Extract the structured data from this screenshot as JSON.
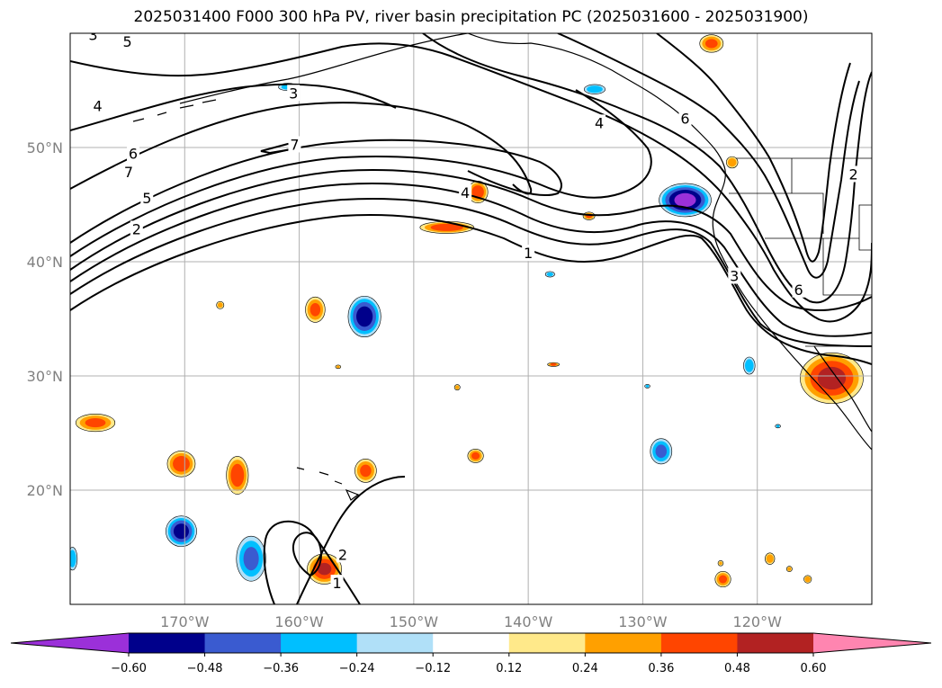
{
  "title": "2025031400 F000 300 hPa PV, river basin precipitation PC (2025031600 - 2025031900)",
  "map": {
    "lon_range": [
      -180,
      -110
    ],
    "lat_range": [
      10,
      60
    ],
    "gridlines": true,
    "lon_ticks": [
      {
        "lon": -170,
        "label": "170°W"
      },
      {
        "lon": -160,
        "label": "160°W"
      },
      {
        "lon": -150,
        "label": "150°W"
      },
      {
        "lon": -140,
        "label": "140°W"
      },
      {
        "lon": -130,
        "label": "130°W"
      },
      {
        "lon": -120,
        "label": "120°W"
      }
    ],
    "lat_ticks": [
      {
        "lat": 50,
        "label": "50°N"
      },
      {
        "lat": 40,
        "label": "40°N"
      },
      {
        "lat": 30,
        "label": "30°N"
      },
      {
        "lat": 20,
        "label": "20°N"
      }
    ],
    "contour_labels": [
      {
        "text": "3",
        "lon": -178,
        "lat": 59.8
      },
      {
        "text": "5",
        "lon": -175,
        "lat": 59.2
      },
      {
        "text": "3",
        "lon": -160.5,
        "lat": 54.7
      },
      {
        "text": "4",
        "lon": -177.6,
        "lat": 53.6
      },
      {
        "text": "7",
        "lon": -160.4,
        "lat": 50.2
      },
      {
        "text": "6",
        "lon": -174.5,
        "lat": 49.4
      },
      {
        "text": "7",
        "lon": -174.9,
        "lat": 47.8
      },
      {
        "text": "5",
        "lon": -173.3,
        "lat": 45.5
      },
      {
        "text": "2",
        "lon": -174.2,
        "lat": 42.8
      },
      {
        "text": "4",
        "lon": -145.5,
        "lat": 46.0
      },
      {
        "text": "1",
        "lon": -140.0,
        "lat": 40.7
      },
      {
        "text": "4",
        "lon": -133.8,
        "lat": 52.1
      },
      {
        "text": "6",
        "lon": -126.3,
        "lat": 52.5
      },
      {
        "text": "2",
        "lon": -111.6,
        "lat": 47.6
      },
      {
        "text": "3",
        "lon": -122.0,
        "lat": 38.7
      },
      {
        "text": "6",
        "lon": -116.4,
        "lat": 37.5
      },
      {
        "text": "2",
        "lon": -156.2,
        "lat": 14.3
      },
      {
        "text": "1",
        "lon": -156.7,
        "lat": 11.8
      }
    ]
  },
  "legend": {
    "ticks": [
      "−0.60",
      "−0.48",
      "−0.36",
      "−0.24",
      "−0.12",
      "0.12",
      "0.24",
      "0.36",
      "0.48",
      "0.60"
    ],
    "colors": [
      "#9b30d9",
      "#00008b",
      "#3a5bd0",
      "#00bfff",
      "#b0e0f8",
      "#ffffff",
      "#ffe98a",
      "#ffa000",
      "#ff4500",
      "#b22222",
      "#ff85b0"
    ],
    "extend": "both"
  },
  "precip_blobs": [
    {
      "lon": -177.8,
      "lat": 25.9,
      "rx": 2.0,
      "ry": 0.9,
      "sign": "pos",
      "peak": 0.4
    },
    {
      "lon": -170.3,
      "lat": 22.3,
      "rx": 1.4,
      "ry": 1.3,
      "sign": "pos",
      "peak": 0.45
    },
    {
      "lon": -165.4,
      "lat": 21.3,
      "rx": 1.1,
      "ry": 1.9,
      "sign": "pos",
      "peak": 0.45
    },
    {
      "lon": -154.2,
      "lat": 21.7,
      "rx": 1.1,
      "ry": 1.2,
      "sign": "pos",
      "peak": 0.4
    },
    {
      "lon": -144.6,
      "lat": 23.0,
      "rx": 0.8,
      "ry": 0.7,
      "sign": "pos",
      "peak": 0.4
    },
    {
      "lon": -170.3,
      "lat": 16.4,
      "rx": 1.5,
      "ry": 1.5,
      "sign": "neg",
      "peak": 0.55
    },
    {
      "lon": -164.2,
      "lat": 14.0,
      "rx": 1.5,
      "ry": 2.3,
      "sign": "neg",
      "peak": 0.4
    },
    {
      "lon": -157.8,
      "lat": 13.1,
      "rx": 1.7,
      "ry": 1.5,
      "sign": "pos",
      "peak": 0.5
    },
    {
      "lon": -179.8,
      "lat": 14.0,
      "rx": 0.5,
      "ry": 1.2,
      "sign": "neg",
      "peak": 0.35
    },
    {
      "lon": -154.3,
      "lat": 35.2,
      "rx": 1.6,
      "ry": 2.0,
      "sign": "neg",
      "peak": 0.55
    },
    {
      "lon": -158.6,
      "lat": 35.8,
      "rx": 1.0,
      "ry": 1.3,
      "sign": "pos",
      "peak": 0.4
    },
    {
      "lon": -166.9,
      "lat": 36.2,
      "rx": 0.4,
      "ry": 0.4,
      "sign": "pos",
      "peak": 0.3
    },
    {
      "lon": -147.1,
      "lat": 43.0,
      "rx": 2.7,
      "ry": 0.6,
      "sign": "pos",
      "peak": 0.45
    },
    {
      "lon": -144.4,
      "lat": 46.1,
      "rx": 1.0,
      "ry": 1.1,
      "sign": "pos",
      "peak": 0.45
    },
    {
      "lon": -126.3,
      "lat": 45.4,
      "rx": 2.5,
      "ry": 1.6,
      "sign": "neg",
      "peak": 0.65
    },
    {
      "lon": -134.7,
      "lat": 44.0,
      "rx": 0.6,
      "ry": 0.4,
      "sign": "pos",
      "peak": 0.4
    },
    {
      "lon": -137.8,
      "lat": 31.0,
      "rx": 0.6,
      "ry": 0.2,
      "sign": "pos",
      "peak": 0.4
    },
    {
      "lon": -138.1,
      "lat": 38.9,
      "rx": 0.5,
      "ry": 0.3,
      "sign": "neg",
      "peak": 0.3
    },
    {
      "lon": -128.4,
      "lat": 23.4,
      "rx": 1.1,
      "ry": 1.3,
      "sign": "neg",
      "peak": 0.4
    },
    {
      "lon": -120.7,
      "lat": 30.9,
      "rx": 0.6,
      "ry": 0.9,
      "sign": "neg",
      "peak": 0.35
    },
    {
      "lon": -113.5,
      "lat": 29.8,
      "rx": 3.1,
      "ry": 2.5,
      "sign": "pos",
      "peak": 0.52
    },
    {
      "lon": -123.0,
      "lat": 12.2,
      "rx": 0.8,
      "ry": 0.8,
      "sign": "pos",
      "peak": 0.4
    },
    {
      "lon": -118.9,
      "lat": 14.0,
      "rx": 0.5,
      "ry": 0.6,
      "sign": "pos",
      "peak": 0.35
    },
    {
      "lon": -115.6,
      "lat": 12.2,
      "rx": 0.4,
      "ry": 0.4,
      "sign": "pos",
      "peak": 0.35
    },
    {
      "lon": -117.2,
      "lat": 13.1,
      "rx": 0.3,
      "ry": 0.3,
      "sign": "pos",
      "peak": 0.3
    },
    {
      "lon": -134.2,
      "lat": 55.1,
      "rx": 1.1,
      "ry": 0.5,
      "sign": "neg",
      "peak": 0.35
    },
    {
      "lon": -124.0,
      "lat": 59.1,
      "rx": 1.2,
      "ry": 0.9,
      "sign": "pos",
      "peak": 0.4
    },
    {
      "lon": -161.0,
      "lat": 55.3,
      "rx": 1.0,
      "ry": 0.4,
      "sign": "neg",
      "peak": 0.3
    },
    {
      "lon": -122.2,
      "lat": 48.7,
      "rx": 0.6,
      "ry": 0.6,
      "sign": "pos",
      "peak": 0.35
    },
    {
      "lon": -146.2,
      "lat": 29.0,
      "rx": 0.3,
      "ry": 0.3,
      "sign": "pos",
      "peak": 0.3
    },
    {
      "lon": -129.6,
      "lat": 29.1,
      "rx": 0.3,
      "ry": 0.2,
      "sign": "neg",
      "peak": 0.25
    },
    {
      "lon": -118.2,
      "lat": 25.6,
      "rx": 0.3,
      "ry": 0.2,
      "sign": "neg",
      "peak": 0.25
    },
    {
      "lon": -156.6,
      "lat": 30.8,
      "rx": 0.3,
      "ry": 0.2,
      "sign": "pos",
      "peak": 0.25
    },
    {
      "lon": -123.2,
      "lat": 13.6,
      "rx": 0.3,
      "ry": 0.3,
      "sign": "pos",
      "peak": 0.25
    }
  ]
}
